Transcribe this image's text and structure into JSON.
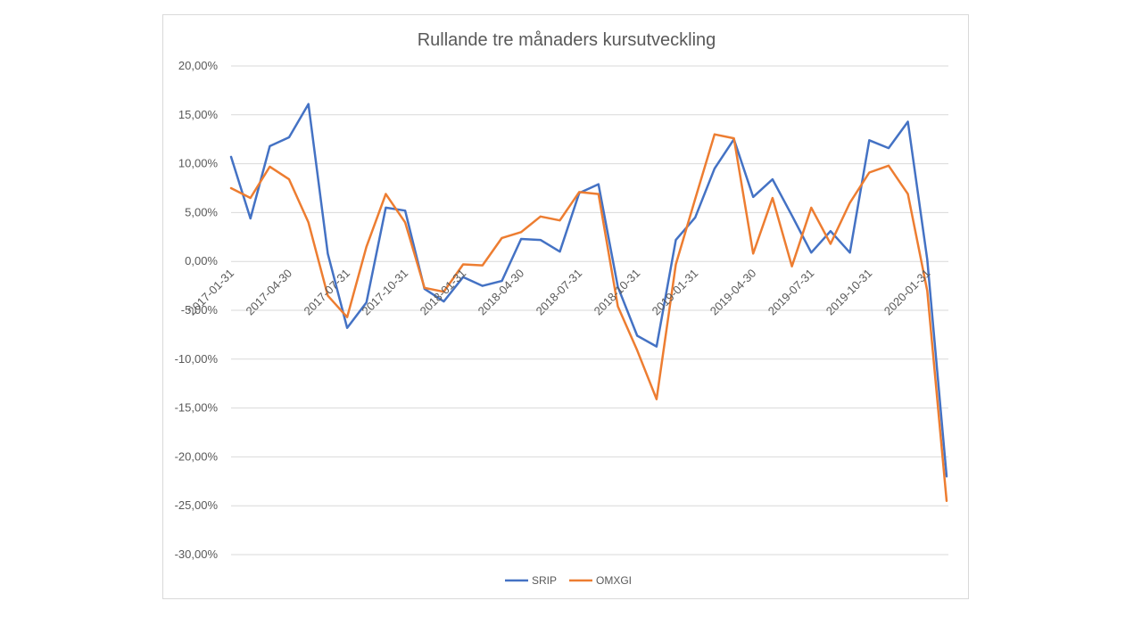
{
  "chart_data": {
    "type": "line",
    "title": "Rullande tre månaders kursutveckling",
    "xlabel": "",
    "ylabel": "",
    "ylim": [
      -30,
      20
    ],
    "y_ticks": [
      20,
      15,
      10,
      5,
      0,
      -5,
      -10,
      -15,
      -20,
      -25,
      -30
    ],
    "y_tick_labels": [
      "20,00%",
      "15,00%",
      "10,00%",
      "5,00%",
      "0,00%",
      "-5,00%",
      "-10,00%",
      "-15,00%",
      "-20,00%",
      "-25,00%",
      "-30,00%"
    ],
    "x_tick_labels": [
      "2017-01-31",
      "2017-04-30",
      "2017-07-31",
      "2017-10-31",
      "2018-01-31",
      "2018-04-30",
      "2018-07-31",
      "2018-10-31",
      "2019-01-31",
      "2019-04-30",
      "2019-07-31",
      "2019-10-31",
      "2020-01-31"
    ],
    "x_categories": [
      "2017-01-31",
      "2017-02-28",
      "2017-03-31",
      "2017-04-30",
      "2017-05-31",
      "2017-06-30",
      "2017-07-31",
      "2017-08-31",
      "2017-09-30",
      "2017-10-31",
      "2017-11-30",
      "2017-12-31",
      "2018-01-31",
      "2018-02-28",
      "2018-03-31",
      "2018-04-30",
      "2018-05-31",
      "2018-06-30",
      "2018-07-31",
      "2018-08-31",
      "2018-09-30",
      "2018-10-31",
      "2018-11-30",
      "2018-12-31",
      "2019-01-31",
      "2019-02-28",
      "2019-03-31",
      "2019-04-30",
      "2019-05-31",
      "2019-06-30",
      "2019-07-31",
      "2019-08-31",
      "2019-09-30",
      "2019-10-31",
      "2019-11-30",
      "2019-12-31",
      "2020-01-31",
      "2020-02-29"
    ],
    "gridlines": true,
    "legend_position": "bottom",
    "series": [
      {
        "name": "SRIP",
        "color": "#4472c4",
        "values": [
          10.7,
          4.4,
          11.8,
          12.7,
          16.1,
          0.8,
          -6.8,
          -4.2,
          5.5,
          5.2,
          -2.8,
          -4.1,
          -1.6,
          -2.5,
          -2.0,
          2.3,
          2.2,
          1.0,
          7.0,
          7.9,
          -2.6,
          -7.6,
          -8.7,
          2.2,
          4.5,
          9.5,
          12.5,
          6.6,
          8.4,
          4.7,
          0.9,
          3.1,
          0.9,
          12.4,
          11.6,
          14.3,
          0.2,
          -22.0
        ]
      },
      {
        "name": "OMXGI",
        "color": "#ed7d31",
        "values": [
          7.5,
          6.5,
          9.7,
          8.4,
          4.0,
          -3.5,
          -5.7,
          1.5,
          6.9,
          4.0,
          -2.7,
          -3.1,
          -0.3,
          -0.4,
          2.4,
          3.0,
          4.6,
          4.2,
          7.1,
          6.9,
          -4.6,
          -9.1,
          -14.1,
          -0.3,
          6.4,
          13.0,
          12.6,
          0.8,
          6.5,
          -0.5,
          5.5,
          1.8,
          6.0,
          9.1,
          9.8,
          6.9,
          -3.0,
          -24.5
        ]
      }
    ]
  }
}
